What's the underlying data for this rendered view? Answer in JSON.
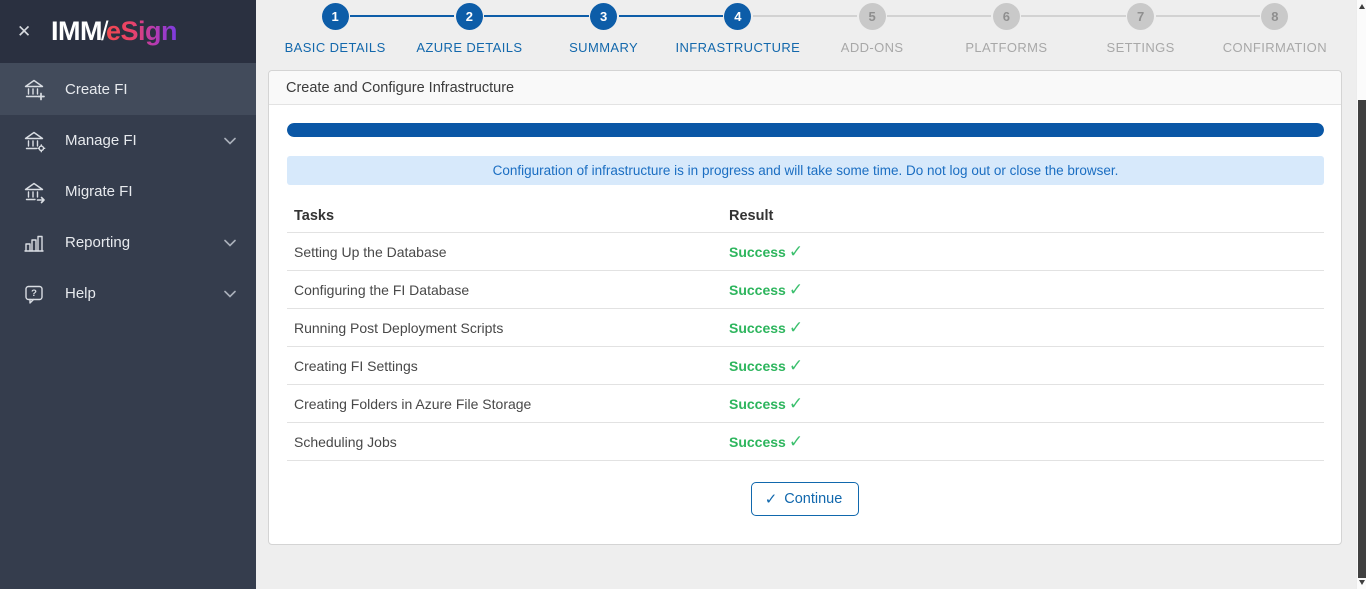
{
  "sidebar": {
    "logo": {
      "imm": "IMM",
      "slash": "/",
      "esign": "eSign"
    },
    "items": [
      {
        "label": "Create FI",
        "icon": "bank-plus-icon",
        "active": true,
        "has_chevron": false
      },
      {
        "label": "Manage FI",
        "icon": "bank-gear-icon",
        "active": false,
        "has_chevron": true
      },
      {
        "label": "Migrate FI",
        "icon": "bank-arrow-icon",
        "active": false,
        "has_chevron": false
      },
      {
        "label": "Reporting",
        "icon": "bar-chart-icon",
        "active": false,
        "has_chevron": true
      },
      {
        "label": "Help",
        "icon": "help-bubble-icon",
        "active": false,
        "has_chevron": true
      }
    ]
  },
  "stepper": {
    "steps": [
      {
        "number": "1",
        "label": "BASIC DETAILS",
        "state": "complete"
      },
      {
        "number": "2",
        "label": "AZURE DETAILS",
        "state": "complete"
      },
      {
        "number": "3",
        "label": "SUMMARY",
        "state": "complete"
      },
      {
        "number": "4",
        "label": "INFRASTRUCTURE",
        "state": "active"
      },
      {
        "number": "5",
        "label": "ADD-ONS",
        "state": "upcoming"
      },
      {
        "number": "6",
        "label": "PLATFORMS",
        "state": "upcoming"
      },
      {
        "number": "7",
        "label": "SETTINGS",
        "state": "upcoming"
      },
      {
        "number": "8",
        "label": "CONFIRMATION",
        "state": "upcoming"
      }
    ]
  },
  "panel": {
    "title": "Create and Configure Infrastructure",
    "progress_percent": 100,
    "alert": "Configuration of infrastructure is in progress and will take some time. Do not log out or close the browser.",
    "table": {
      "headers": {
        "tasks": "Tasks",
        "result": "Result"
      },
      "rows": [
        {
          "task": "Setting Up the Database",
          "result": "Success"
        },
        {
          "task": "Configuring the FI Database",
          "result": "Success"
        },
        {
          "task": "Running Post Deployment Scripts",
          "result": "Success"
        },
        {
          "task": "Creating FI Settings",
          "result": "Success"
        },
        {
          "task": "Creating Folders in Azure File Storage",
          "result": "Success"
        },
        {
          "task": "Scheduling Jobs",
          "result": "Success"
        }
      ]
    },
    "continue_label": "Continue"
  },
  "icons": {
    "close": "✕",
    "check": "✓"
  },
  "colors": {
    "accent_blue": "#0d5da8",
    "success_green": "#2db55d",
    "alert_bg": "#d7e9fb",
    "alert_text": "#1b6ec2",
    "sidebar_bg": "#353d4d",
    "sidebar_logo_bg": "#2a3040",
    "sidebar_active_bg": "#424b5b",
    "logo_gradient_start": "#f2484e",
    "logo_gradient_end": "#7a3ce0",
    "inactive_gray": "#c9c9c9"
  }
}
